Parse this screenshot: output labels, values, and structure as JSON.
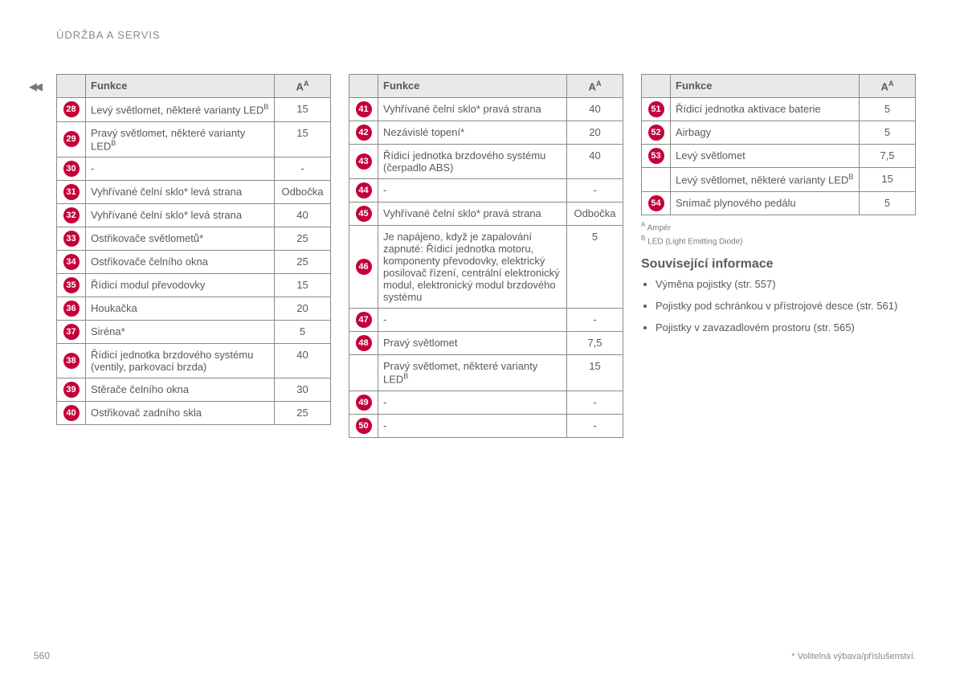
{
  "meta": {
    "section_title": "ÚDRŽBA A SERVIS",
    "page_number": "560",
    "footnote": "* Volitelná výbava/příslušenství.",
    "continuation_glyph": "◀◀"
  },
  "table_header": {
    "function_label": "Funkce",
    "amp_label": "A",
    "amp_super": "A"
  },
  "tables": [
    {
      "rows": [
        {
          "n": "28",
          "funkce": "Levý světlomet, některé varianty LED",
          "sup": "B",
          "amp": "15"
        },
        {
          "n": "29",
          "funkce": "Pravý světlomet, některé varianty LED",
          "sup": "B",
          "amp": "15"
        },
        {
          "n": "30",
          "funkce": "-",
          "amp": "-"
        },
        {
          "n": "31",
          "funkce": "Vyhřívané čelní sklo* levá strana",
          "amp": "Odbočka"
        },
        {
          "n": "32",
          "funkce": "Vyhřívané čelní sklo* levá strana",
          "amp": "40"
        },
        {
          "n": "33",
          "funkce": "Ostřikovače světlometů*",
          "amp": "25"
        },
        {
          "n": "34",
          "funkce": "Ostřikovače čelního okna",
          "amp": "25"
        },
        {
          "n": "35",
          "funkce": "Řídicí modul převodovky",
          "amp": "15"
        },
        {
          "n": "36",
          "funkce": "Houkačka",
          "amp": "20"
        },
        {
          "n": "37",
          "funkce": "Siréna*",
          "amp": "5"
        },
        {
          "n": "38",
          "funkce": "Řídicí jednotka brzdového systému (ventily, parkovací brzda)",
          "amp": "40"
        },
        {
          "n": "39",
          "funkce": "Stěrače čelního okna",
          "amp": "30"
        },
        {
          "n": "40",
          "funkce": "Ostřikovač zadního skla",
          "amp": "25"
        }
      ]
    },
    {
      "rows": [
        {
          "n": "41",
          "funkce": "Vyhřívané čelní sklo* pravá strana",
          "amp": "40"
        },
        {
          "n": "42",
          "funkce": "Nezávislé topení*",
          "amp": "20"
        },
        {
          "n": "43",
          "funkce": "Řídicí jednotka brzdového systému (čerpadlo ABS)",
          "amp": "40"
        },
        {
          "n": "44",
          "funkce": "-",
          "amp": "-"
        },
        {
          "n": "45",
          "funkce": "Vyhřívané čelní sklo* pravá strana",
          "amp": "Odbočka"
        },
        {
          "n": "46",
          "funkce": "Je napájeno, když je zapalování zapnuté: Řídicí jednotka motoru, komponenty převodovky, elektrický posilovač řízení, centrální elektronický modul, elektronický modul brzdového systému",
          "amp": "5"
        },
        {
          "n": "47",
          "funkce": "-",
          "amp": "-"
        },
        {
          "n": "48",
          "funkce": "Pravý světlomet",
          "amp": "7,5"
        },
        {
          "n": "",
          "funkce": "Pravý světlomet, některé varianty LED",
          "sup": "B",
          "amp": "15"
        },
        {
          "n": "49",
          "funkce": "-",
          "amp": "-"
        },
        {
          "n": "50",
          "funkce": "-",
          "amp": "-"
        }
      ]
    },
    {
      "rows": [
        {
          "n": "51",
          "funkce": "Řídicí jednotka aktivace baterie",
          "amp": "5"
        },
        {
          "n": "52",
          "funkce": "Airbagy",
          "amp": "5"
        },
        {
          "n": "53",
          "funkce": "Levý světlomet",
          "amp": "7,5"
        },
        {
          "n": "",
          "funkce": "Levý světlomet, některé varianty LED",
          "sup": "B",
          "amp": "15"
        },
        {
          "n": "54",
          "funkce": "Snímač plynového pedálu",
          "amp": "5"
        }
      ]
    }
  ],
  "legend": {
    "a": "Ampér",
    "b": "LED (Light Emitting Diode)"
  },
  "related": {
    "heading": "Související informace",
    "items": [
      "Výměna pojistky (str. 557)",
      "Pojistky pod schránkou v přístrojové desce (str. 561)",
      "Pojistky v zavazadlovém prostoru (str. 565)"
    ]
  },
  "style": {
    "badge_bg": "#c4003a",
    "border_color": "#8a8a8a",
    "header_bg": "#e9e9e9"
  }
}
